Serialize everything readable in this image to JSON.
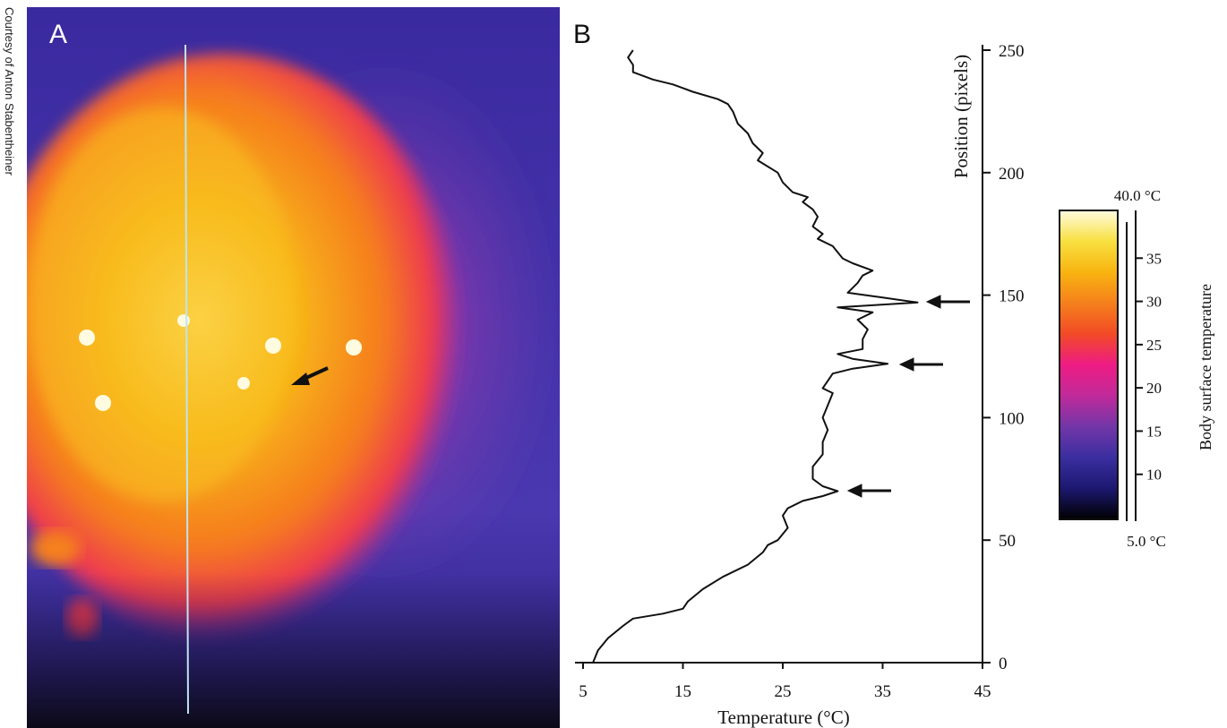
{
  "chart_data": {
    "type": "line",
    "panel_labels": [
      "A",
      "B"
    ],
    "credit": "Courtesy of Anton Stabentheiner",
    "xlabel": "Temperature (°C)",
    "ylabel": "Position (pixels)",
    "xlim": [
      5,
      45
    ],
    "xticks": [
      5,
      15,
      25,
      35,
      45
    ],
    "ylim": [
      0,
      250
    ],
    "yticks": [
      0,
      50,
      100,
      150,
      200,
      250
    ],
    "color": "#111111",
    "x": [
      6,
      6.5,
      7.5,
      9,
      10,
      13,
      15,
      15.5,
      17,
      19,
      21.5,
      23,
      23.5,
      24.5,
      25.5,
      25,
      25.5,
      27,
      29,
      30.5,
      29,
      28,
      28,
      29,
      29,
      29.5,
      29,
      29.5,
      30,
      29,
      29.5,
      30,
      32,
      35.5,
      32,
      30.5,
      33,
      33,
      33.5,
      32.5,
      34,
      30.5,
      38.5,
      35,
      31.5,
      32.5,
      33,
      34,
      32,
      31,
      30,
      28.5,
      29,
      28,
      28.5,
      28,
      27,
      27.5,
      26,
      25,
      24.5,
      22.5,
      23,
      22,
      21.5,
      20.5,
      20,
      19.5,
      18.5,
      16,
      14,
      12,
      10,
      10,
      9.5,
      10
    ],
    "y": [
      0,
      5,
      10,
      15,
      18,
      20,
      22,
      25,
      30,
      35,
      40,
      45,
      48,
      50,
      55,
      60,
      63,
      66,
      68,
      70,
      72,
      75,
      80,
      85,
      90,
      95,
      100,
      105,
      110,
      112,
      115,
      118,
      120,
      122,
      124,
      126,
      128,
      132,
      136,
      140,
      143,
      145,
      147,
      149,
      151,
      155,
      158,
      160,
      163,
      165,
      170,
      173,
      175,
      178,
      182,
      185,
      188,
      190,
      192,
      196,
      200,
      205,
      208,
      212,
      216,
      220,
      225,
      228,
      230,
      233,
      236,
      238,
      241,
      244,
      247,
      250
    ],
    "colorbar": {
      "label": "Body surface temperature",
      "max_label": "40.0 °C",
      "min_label": "5.0 °C",
      "lim": [
        5,
        40
      ],
      "ticks": [
        10,
        15,
        20,
        25,
        30,
        35
      ],
      "colors": [
        "#000000",
        "#1c1870",
        "#3b2ea0",
        "#7236a8",
        "#c02a9a",
        "#ee1c84",
        "#f24a26",
        "#f5801c",
        "#f8b410",
        "#f8e040",
        "#fffce0"
      ]
    }
  }
}
